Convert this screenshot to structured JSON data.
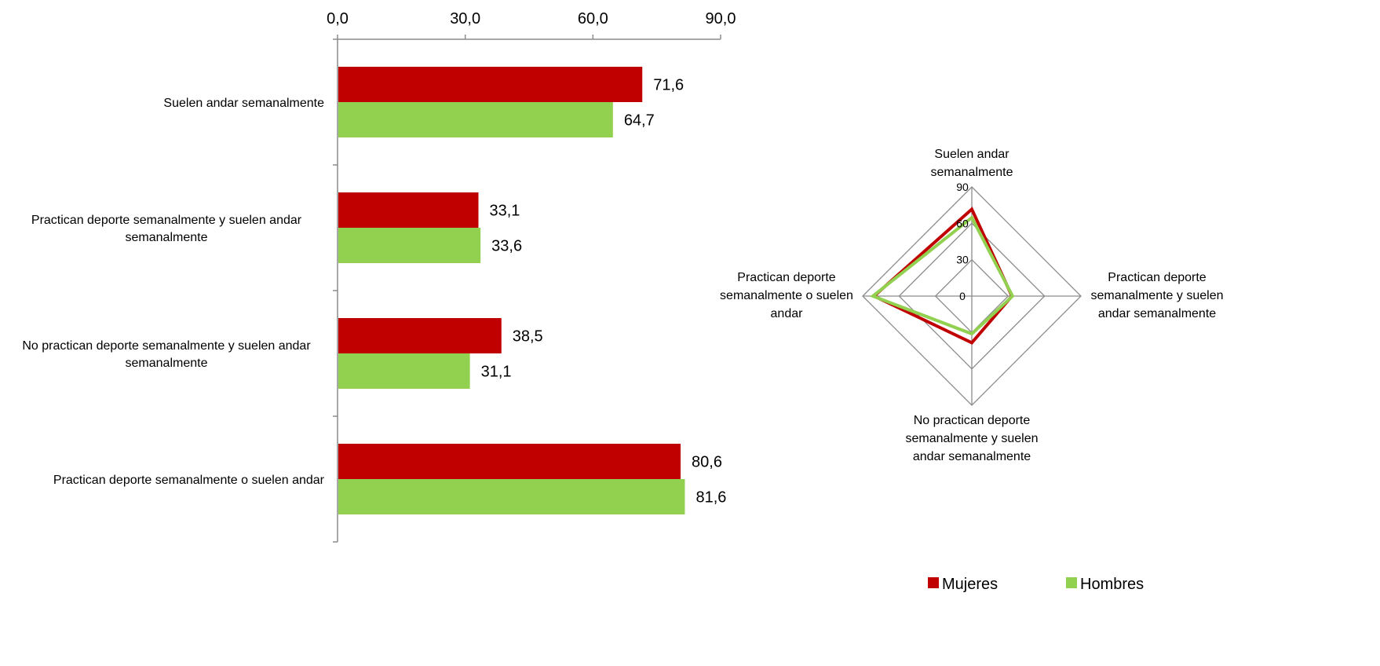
{
  "chart_data": [
    {
      "type": "bar",
      "orientation": "horizontal",
      "categories": [
        "Suelen andar semanalmente",
        "Practican deporte semanalmente y suelen andar semanalmente",
        "No practican deporte semanalmente y suelen andar semanalmente",
        "Practican deporte  semanalmente o suelen andar"
      ],
      "category_lines": [
        [
          "Suelen andar semanalmente"
        ],
        [
          "Practican deporte semanalmente y suelen andar",
          "semanalmente"
        ],
        [
          "No practican deporte semanalmente y suelen andar",
          "semanalmente"
        ],
        [
          "Practican deporte  semanalmente o suelen andar"
        ]
      ],
      "series": [
        {
          "name": "Mujeres",
          "color": "#c00000",
          "values": [
            71.6,
            33.1,
            38.5,
            80.6
          ],
          "labels": [
            "71,6",
            "33,1",
            "38,5",
            "80,6"
          ]
        },
        {
          "name": "Hombres",
          "color": "#92d050",
          "values": [
            64.7,
            33.6,
            31.1,
            81.6
          ],
          "labels": [
            "64,7",
            "33,6",
            "31,1",
            "81,6"
          ]
        }
      ],
      "xlim": [
        0,
        90
      ],
      "ticks": [
        0,
        30,
        60,
        90
      ],
      "tick_labels": [
        "0,0",
        "30,0",
        "60,0",
        "90,0"
      ],
      "axis_position": "top",
      "grid": false
    },
    {
      "type": "radar",
      "axes": [
        [
          "Suelen andar",
          "semanalmente"
        ],
        [
          "Practican deporte",
          "semanalmente y suelen",
          "andar semanalmente"
        ],
        [
          "No practican deporte",
          "semanalmente y suelen",
          "andar semanalmente"
        ],
        [
          "Practican deporte",
          "semanalmente o suelen",
          "andar"
        ]
      ],
      "series": [
        {
          "name": "Mujeres",
          "color": "#c00000",
          "values": [
            71.6,
            33.1,
            38.5,
            80.6
          ]
        },
        {
          "name": "Hombres",
          "color": "#92d050",
          "values": [
            64.7,
            33.6,
            31.1,
            81.6
          ]
        }
      ],
      "rmax": 90,
      "ring_values": [
        0,
        30,
        60,
        90
      ],
      "ring_labels": [
        "0",
        "30",
        "60",
        "90"
      ],
      "grid": true
    }
  ],
  "legend": {
    "placement": "bottom-right",
    "items": [
      {
        "name": "Mujeres",
        "color": "#c00000"
      },
      {
        "name": "Hombres",
        "color": "#92d050"
      }
    ]
  }
}
